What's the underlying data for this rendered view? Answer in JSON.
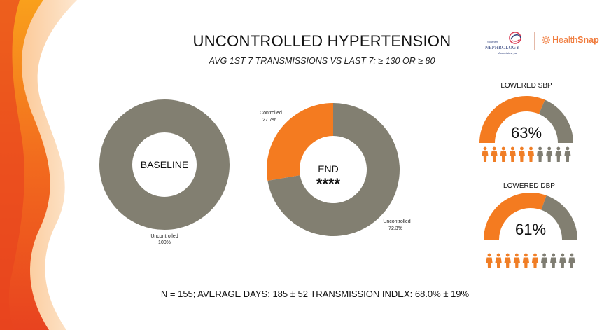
{
  "title": "UNCONTROLLED HYPERTENSION",
  "subtitle": "AVG 1ST 7 TRANSMISSIONS VS LAST 7: ≥ 130 OR ≥ 80",
  "logos": {
    "nephrology_small": "Southern",
    "nephrology": "NEPHROLOGY",
    "nephrology_sub": "Associates, pa",
    "healthsnap_a": "Health",
    "healthsnap_b": "Snap"
  },
  "colors": {
    "orange": "#f47b20",
    "gray": "#827f71",
    "person_orange": "#f07e26",
    "person_gray": "#7f7d72"
  },
  "chart_data": [
    {
      "type": "pie",
      "variant": "donut",
      "center_label": "BASELINE",
      "slices": [
        {
          "label": "Uncontrolled",
          "value": 100,
          "display": "100%",
          "color": "#827f71"
        }
      ]
    },
    {
      "type": "pie",
      "variant": "donut",
      "center_label": "END",
      "center_sublabel": "****",
      "slices": [
        {
          "label": "Controlled",
          "value": 27.7,
          "display": "27.7%",
          "color": "#f47b20"
        },
        {
          "label": "Uncontrolled",
          "value": 72.3,
          "display": "72.3%",
          "color": "#827f71"
        }
      ]
    },
    {
      "type": "gauge",
      "title": "LOWERED SBP",
      "value": 63,
      "display": "63%",
      "people_total": 10,
      "people_highlighted": 6
    },
    {
      "type": "gauge",
      "title": "LOWERED DBP",
      "value": 61,
      "display": "61%",
      "people_total": 10,
      "people_highlighted": 6
    }
  ],
  "footer": "N = 155; AVERAGE DAYS: 185 ± 52 TRANSMISSION INDEX: 68.0% ± 19%"
}
